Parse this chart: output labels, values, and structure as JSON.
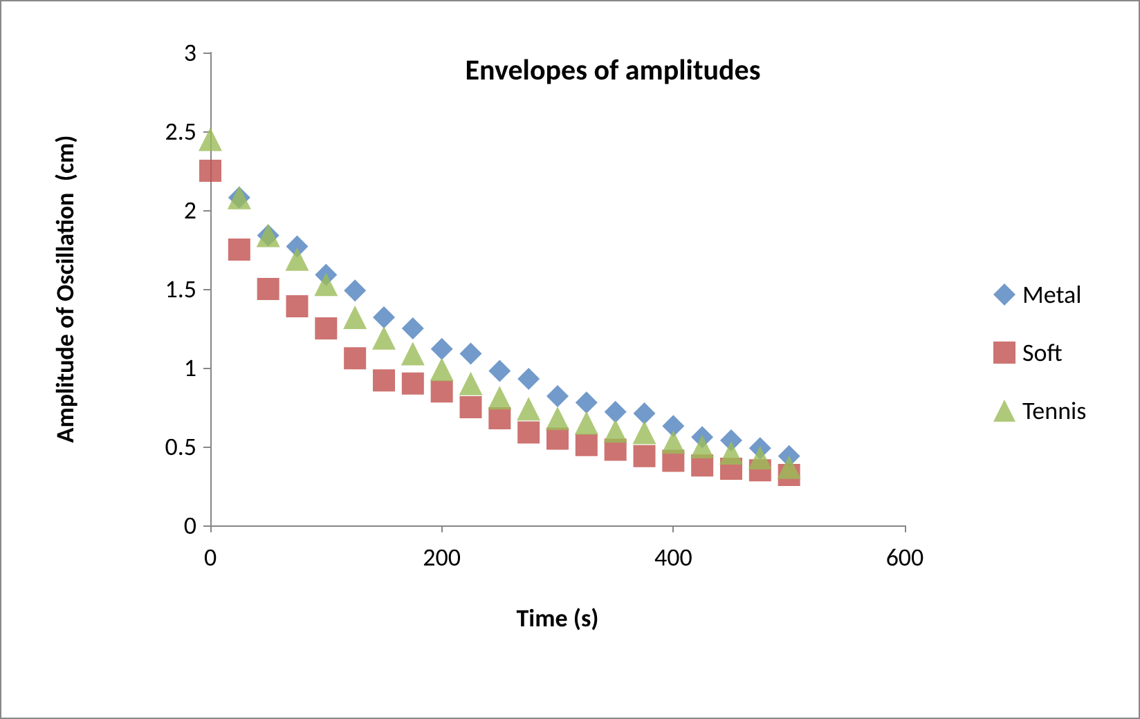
{
  "chart_data": {
    "type": "scatter",
    "title": "Envelopes of amplitudes",
    "xlabel": "Time (s)",
    "ylabel": "Amplitude of Oscillation  (cm)",
    "x": [
      0,
      25,
      50,
      75,
      100,
      125,
      150,
      175,
      200,
      225,
      250,
      275,
      300,
      325,
      350,
      375,
      400,
      425,
      450,
      475,
      500
    ],
    "series": [
      {
        "name": "Metal",
        "color": "#4f81bd",
        "marker": "diamond",
        "values": [
          null,
          2.08,
          1.84,
          1.77,
          1.59,
          1.49,
          1.32,
          1.25,
          1.12,
          1.09,
          0.98,
          0.93,
          0.82,
          0.78,
          0.72,
          0.71,
          0.63,
          0.56,
          0.54,
          0.49,
          0.44
        ]
      },
      {
        "name": "Soft",
        "color": "#c0504d",
        "marker": "square",
        "values": [
          2.25,
          1.75,
          1.5,
          1.39,
          1.25,
          1.06,
          0.92,
          0.9,
          0.85,
          0.75,
          0.68,
          0.59,
          0.55,
          0.51,
          0.48,
          0.44,
          0.41,
          0.38,
          0.36,
          0.35,
          0.32
        ]
      },
      {
        "name": "Tennis",
        "color": "#9bbb59",
        "marker": "triangle",
        "values": [
          2.45,
          2.08,
          1.84,
          1.69,
          1.53,
          1.32,
          1.19,
          1.09,
          0.99,
          0.9,
          0.81,
          0.74,
          0.68,
          0.65,
          0.6,
          0.59,
          0.53,
          0.5,
          0.46,
          0.43,
          0.37
        ]
      }
    ],
    "xlim": [
      0,
      600
    ],
    "xticks": [
      0,
      200,
      400,
      600
    ],
    "ylim": [
      0,
      3
    ],
    "yticks": [
      0,
      0.5,
      1,
      1.5,
      2,
      2.5,
      3
    ],
    "grid": false,
    "legend": "right"
  }
}
